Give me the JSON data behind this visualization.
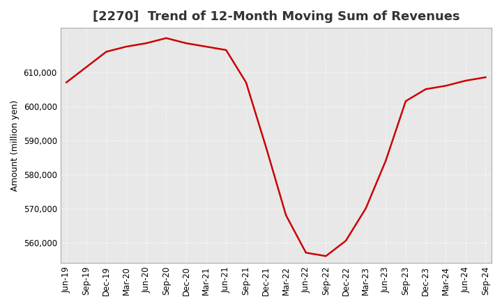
{
  "title": "[2270]  Trend of 12-Month Moving Sum of Revenues",
  "ylabel": "Amount (million yen)",
  "line_color": "#cc0000",
  "line_width": 1.8,
  "background_color": "#ffffff",
  "plot_bg_color": "#e8e8e8",
  "grid_color": "#ffffff",
  "tick_labels": [
    "Jun-19",
    "Sep-19",
    "Dec-19",
    "Mar-20",
    "Jun-20",
    "Sep-20",
    "Dec-20",
    "Mar-21",
    "Jun-21",
    "Sep-21",
    "Dec-21",
    "Mar-22",
    "Jun-22",
    "Sep-22",
    "Dec-22",
    "Mar-23",
    "Jun-23",
    "Sep-23",
    "Dec-23",
    "Mar-24",
    "Jun-24",
    "Sep-24"
  ],
  "values": [
    607000,
    611500,
    616000,
    617500,
    618500,
    620000,
    618500,
    617500,
    616500,
    607000,
    588000,
    568000,
    557000,
    556000,
    560500,
    570000,
    584000,
    601500,
    605000,
    606000,
    607500,
    608500
  ],
  "ylim": [
    554000,
    623000
  ],
  "yticks": [
    560000,
    570000,
    580000,
    590000,
    600000,
    610000
  ],
  "title_fontsize": 13,
  "label_fontsize": 9,
  "tick_fontsize": 8.5
}
